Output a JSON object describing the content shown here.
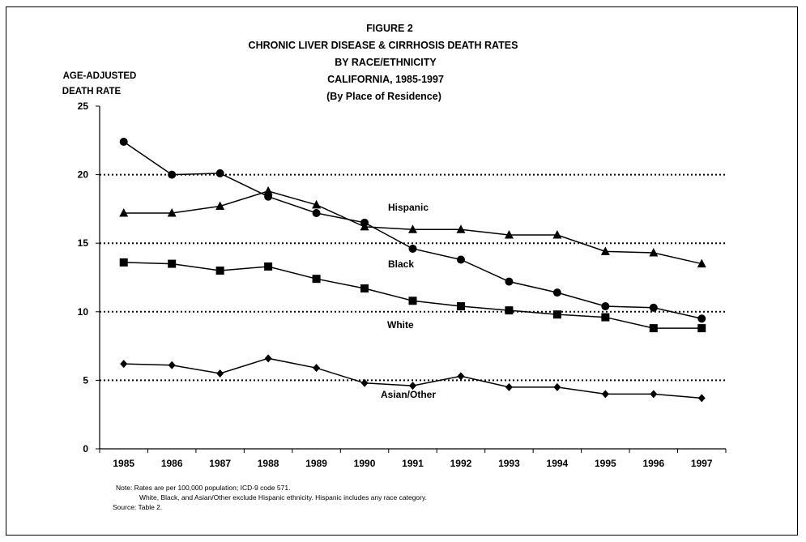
{
  "chart_data": {
    "type": "line",
    "title_lines": [
      "FIGURE 2",
      "CHRONIC LIVER DISEASE & CIRRHOSIS DEATH RATES",
      "BY RACE/ETHNICITY",
      "CALIFORNIA, 1985-1997",
      "(By Place of Residence)"
    ],
    "ylabel_lines": [
      "AGE-ADJUSTED",
      "DEATH RATE"
    ],
    "xlabel": "",
    "ylim": [
      0,
      25
    ],
    "yticks": [
      "0",
      "5",
      "10",
      "15",
      "20",
      "25"
    ],
    "grid": "dotted horizontal at 5, 10, 15, 20",
    "x": [
      "1985",
      "1986",
      "1987",
      "1988",
      "1989",
      "1990",
      "1991",
      "1992",
      "1993",
      "1994",
      "1995",
      "1996",
      "1997"
    ],
    "series": [
      {
        "name": "Black",
        "marker": "circle",
        "values": [
          22.4,
          20.0,
          20.1,
          18.4,
          17.2,
          16.5,
          14.6,
          13.8,
          12.2,
          11.4,
          10.4,
          10.3,
          9.5
        ]
      },
      {
        "name": "Hispanic",
        "marker": "triangle",
        "values": [
          17.2,
          17.2,
          17.7,
          18.8,
          17.8,
          16.2,
          16.0,
          16.0,
          15.6,
          15.6,
          14.4,
          14.3,
          13.5
        ]
      },
      {
        "name": "White",
        "marker": "square",
        "values": [
          13.6,
          13.5,
          13.0,
          13.3,
          12.4,
          11.7,
          10.8,
          10.4,
          10.1,
          9.8,
          9.6,
          8.8,
          8.8
        ]
      },
      {
        "name": "Asian/Other",
        "marker": "diamond",
        "values": [
          6.2,
          6.1,
          5.5,
          6.6,
          5.9,
          4.8,
          4.6,
          5.3,
          4.5,
          4.5,
          4.0,
          4.0,
          3.7
        ]
      }
    ],
    "notes": [
      "Note:  Rates are per 100,000 population;  ICD-9 code 571.",
      "White, Black, and Asian/Other exclude Hispanic ethnicity.  Hispanic includes any race category.",
      "Source:  Table 2."
    ]
  }
}
